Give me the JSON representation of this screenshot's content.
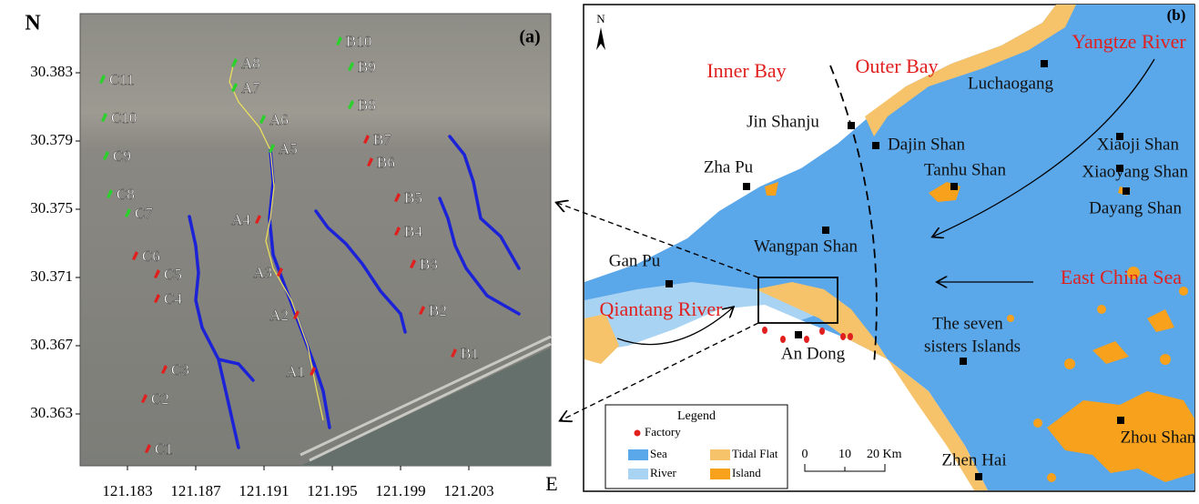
{
  "panel_a": {
    "label": "(a)",
    "north_label": "N",
    "east_label": "E",
    "yticks": [
      30.383,
      30.379,
      30.375,
      30.371,
      30.367,
      30.363
    ],
    "xticks": [
      121.183,
      121.187,
      121.191,
      121.195,
      121.199,
      121.203
    ],
    "sites": [
      {
        "name": "A1",
        "color": "red"
      },
      {
        "name": "A2",
        "color": "red"
      },
      {
        "name": "A3",
        "color": "red"
      },
      {
        "name": "A4",
        "color": "red"
      },
      {
        "name": "A5",
        "color": "green"
      },
      {
        "name": "A6",
        "color": "green"
      },
      {
        "name": "A7",
        "color": "green"
      },
      {
        "name": "A8",
        "color": "green"
      },
      {
        "name": "B1",
        "color": "red"
      },
      {
        "name": "B2",
        "color": "red"
      },
      {
        "name": "B3",
        "color": "red"
      },
      {
        "name": "B4",
        "color": "red"
      },
      {
        "name": "B5",
        "color": "red"
      },
      {
        "name": "B6",
        "color": "red"
      },
      {
        "name": "B7",
        "color": "red"
      },
      {
        "name": "B8",
        "color": "green"
      },
      {
        "name": "B9",
        "color": "green"
      },
      {
        "name": "B10",
        "color": "green"
      },
      {
        "name": "C1",
        "color": "red"
      },
      {
        "name": "C2",
        "color": "red"
      },
      {
        "name": "C3",
        "color": "red"
      },
      {
        "name": "C4",
        "color": "red"
      },
      {
        "name": "C5",
        "color": "red"
      },
      {
        "name": "C6",
        "color": "red"
      },
      {
        "name": "C7",
        "color": "green"
      },
      {
        "name": "C8",
        "color": "green"
      },
      {
        "name": "C9",
        "color": "green"
      },
      {
        "name": "C10",
        "color": "green"
      },
      {
        "name": "C11",
        "color": "green"
      }
    ]
  },
  "panel_b": {
    "label": "(b)",
    "north_label": "N",
    "places": [
      "Inner Bay",
      "Outer Bay",
      "Yangtze River",
      "Luchaogang",
      "Jin Shanju",
      "Dajin Shan",
      "Tanhu Shan",
      "Zha Pu",
      "Xiaoji Shan",
      "Xiaoyang Shan",
      "Dayang Shan",
      "Wangpan Shan",
      "Gan Pu",
      "East China Sea",
      "Qiantang River",
      "An Dong",
      "The seven",
      "sisters Islands",
      "Zhen Hai",
      "Zhou Shan"
    ],
    "legend": {
      "title": "Legend",
      "items": [
        "Factory",
        "Sea",
        "Tidal Flat",
        "River",
        "Island"
      ]
    },
    "scale": [
      "0",
      "10",
      "20 Km"
    ]
  }
}
